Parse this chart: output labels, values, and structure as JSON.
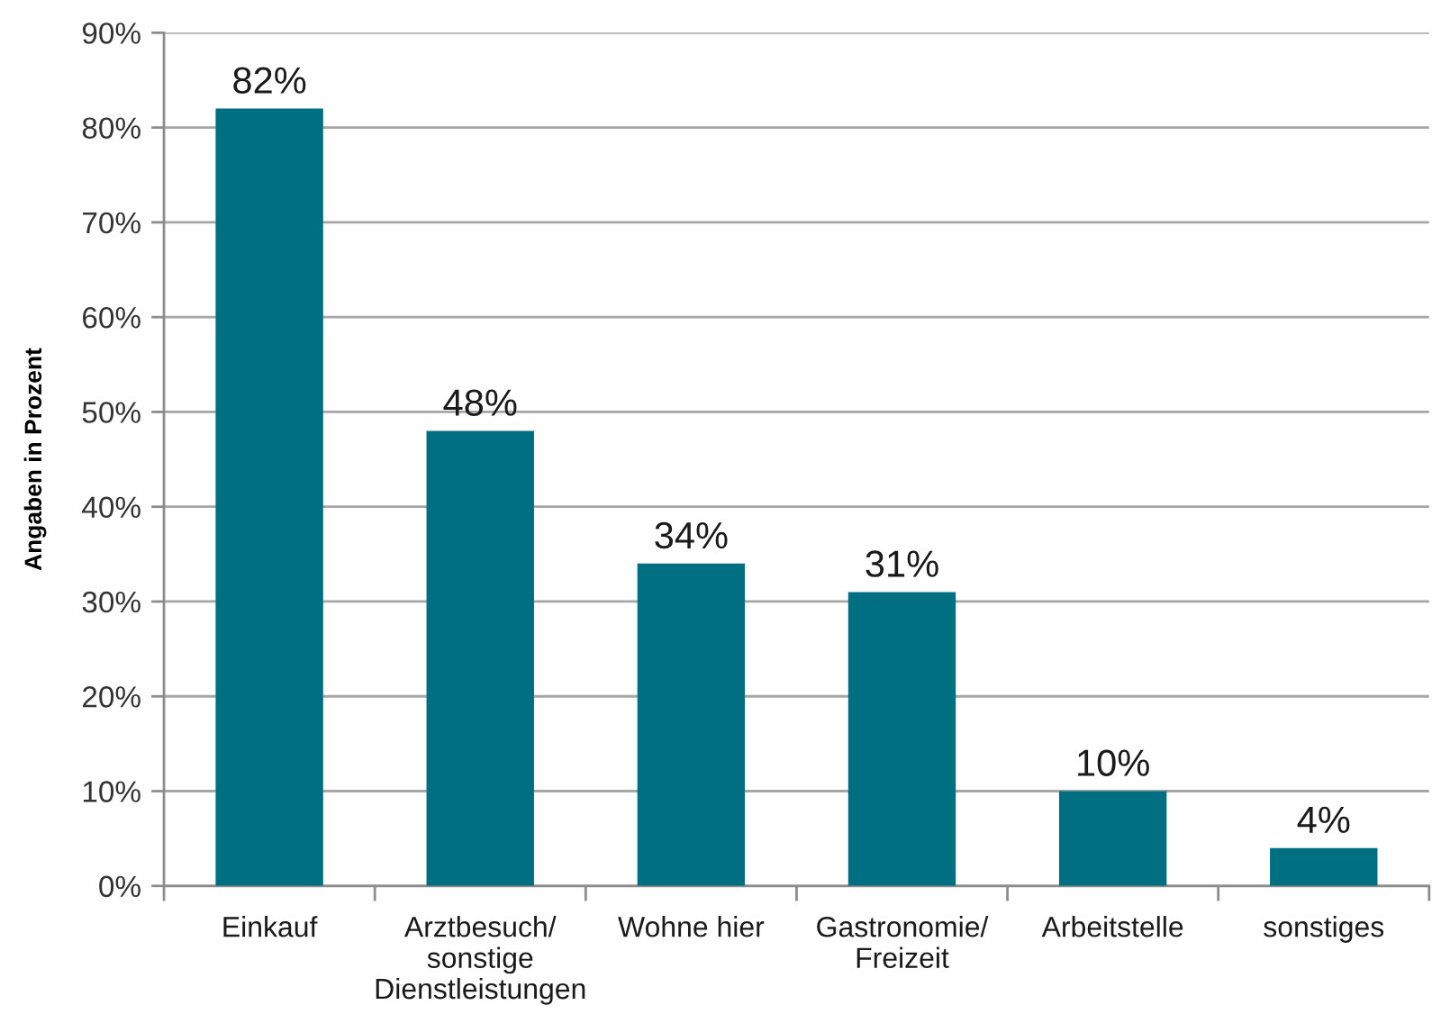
{
  "chart_data": {
    "type": "bar",
    "ylabel": "Angaben in Prozent",
    "categories": [
      "Einkauf",
      "Arztbesuch/\nsonstige\nDienstleistungen",
      "Wohne hier",
      "Gastronomie/\nFreizeit",
      "Arbeitstelle",
      "sonstiges"
    ],
    "values": [
      82,
      48,
      34,
      31,
      10,
      4
    ],
    "value_labels": [
      "82%",
      "48%",
      "34%",
      "31%",
      "10%",
      "4%"
    ],
    "color": "#006f81",
    "ylim": [
      0,
      90
    ],
    "yticks": [
      {
        "value": 0,
        "label": "0%"
      },
      {
        "value": 10,
        "label": "10%"
      },
      {
        "value": 20,
        "label": "20%"
      },
      {
        "value": 30,
        "label": "30%"
      },
      {
        "value": 40,
        "label": "40%"
      },
      {
        "value": 50,
        "label": "50%"
      },
      {
        "value": 60,
        "label": "60%"
      },
      {
        "value": 70,
        "label": "70%"
      },
      {
        "value": 80,
        "label": "80%"
      },
      {
        "value": 90,
        "label": "90%"
      }
    ],
    "grid": "y"
  }
}
